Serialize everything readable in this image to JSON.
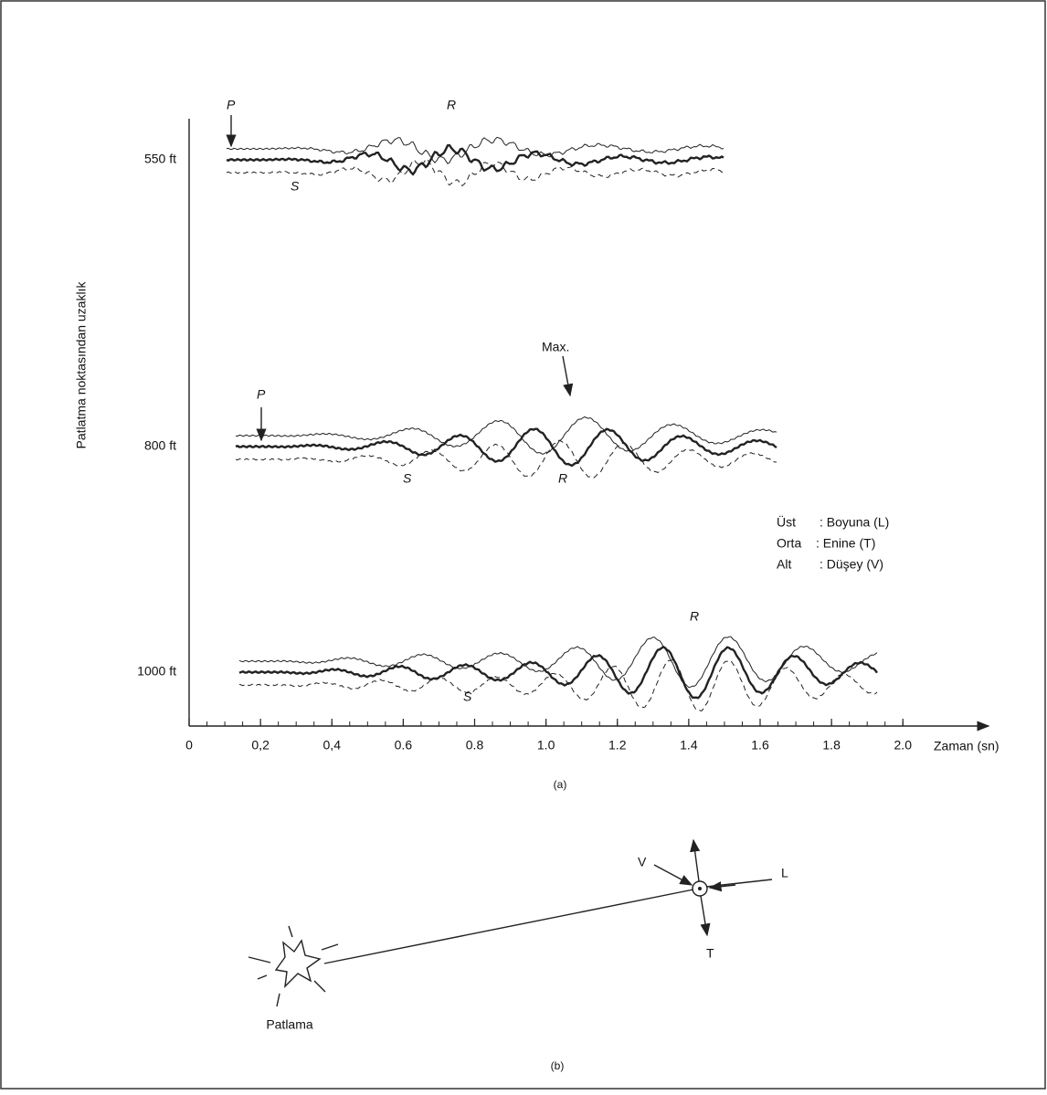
{
  "figure_a": {
    "y_axis_label": "Patlatma noktasından uzaklık",
    "x_axis_label": "Zaman (sn)",
    "xlim": [
      0,
      2.24
    ],
    "xticks": [
      0,
      {
        "value": 0.2,
        "label": "0,2"
      },
      {
        "value": 0.4,
        "label": "0,4"
      },
      {
        "value": 0.6,
        "label": "0.6"
      },
      {
        "value": 0.8,
        "label": "0.8"
      },
      {
        "value": 1,
        "label": "1.0"
      },
      {
        "value": 1.2,
        "label": "1.2"
      },
      {
        "value": 1.4,
        "label": "1.4"
      },
      {
        "value": 1.6,
        "label": "1.6"
      },
      {
        "value": 1.8,
        "label": "1.8"
      },
      {
        "value": 2,
        "label": "2.0"
      }
    ],
    "rows": [
      "550 ft",
      "800 ft",
      "1000 ft"
    ],
    "annotations": {
      "p": "P",
      "s": "S",
      "r": "R",
      "max": "Max."
    },
    "legend": [
      "Üst",
      ": Boyuna (L)",
      "Orta",
      ": Enine (T)",
      "Alt",
      ": Düşey (V)"
    ],
    "caption": "(a)"
  },
  "figure_b": {
    "v": "V",
    "l": "L",
    "t": "T",
    "source": "Patlama",
    "caption": "(b)"
  }
}
